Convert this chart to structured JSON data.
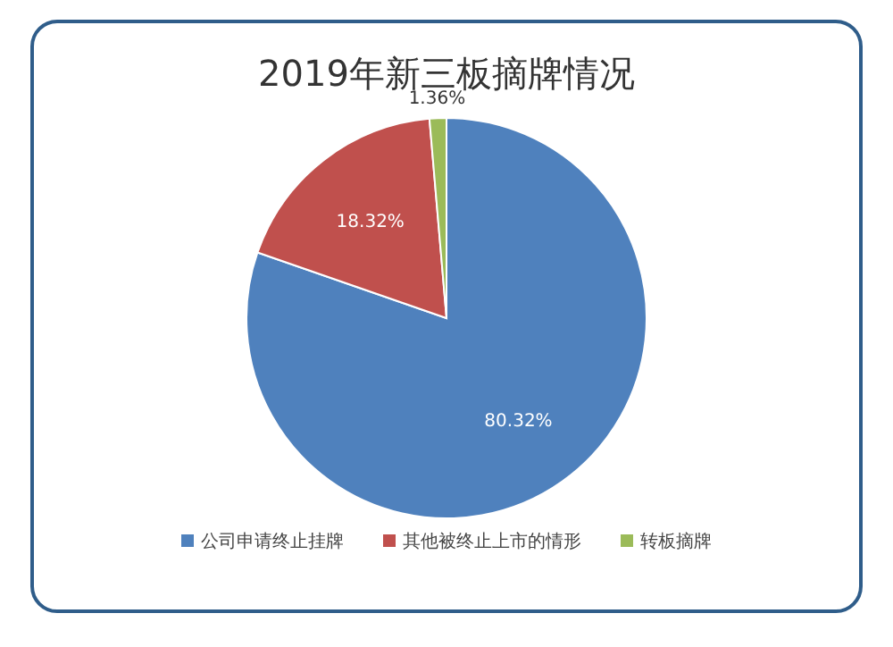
{
  "chart_data": {
    "type": "pie",
    "title": "2019年新三板摘牌情况",
    "categories": [
      "公司申请终止挂牌",
      "其他被终止上市的情形",
      "转板摘牌"
    ],
    "values": [
      80.32,
      18.32,
      1.36
    ],
    "value_labels": [
      "80.32%",
      "18.32%",
      "1.36%"
    ],
    "colors": [
      "#4f81bd",
      "#c0504d",
      "#9bbb59"
    ],
    "legend": "bottom"
  }
}
